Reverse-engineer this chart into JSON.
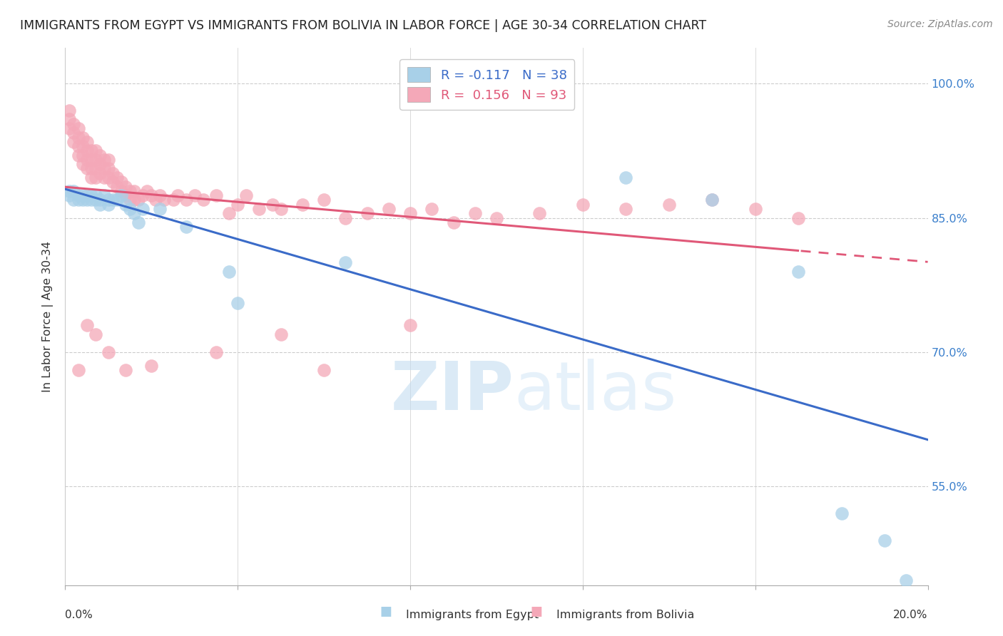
{
  "title": "IMMIGRANTS FROM EGYPT VS IMMIGRANTS FROM BOLIVIA IN LABOR FORCE | AGE 30-34 CORRELATION CHART",
  "source": "Source: ZipAtlas.com",
  "ylabel": "In Labor Force | Age 30-34",
  "ytick_values": [
    0.55,
    0.7,
    0.85,
    1.0
  ],
  "xlim": [
    0.0,
    0.2
  ],
  "ylim": [
    0.44,
    1.04
  ],
  "legend_blue_r": "-0.117",
  "legend_blue_n": "38",
  "legend_pink_r": "0.156",
  "legend_pink_n": "93",
  "blue_color": "#A8D0E8",
  "pink_color": "#F4A8B8",
  "blue_line_color": "#3A6BC8",
  "pink_line_color": "#E05878",
  "watermark_zip": "ZIP",
  "watermark_atlas": "atlas",
  "egypt_x": [
    0.001,
    0.001,
    0.002,
    0.002,
    0.003,
    0.003,
    0.004,
    0.004,
    0.005,
    0.005,
    0.006,
    0.006,
    0.007,
    0.007,
    0.008,
    0.008,
    0.009,
    0.01,
    0.01,
    0.011,
    0.012,
    0.013,
    0.014,
    0.015,
    0.016,
    0.017,
    0.018,
    0.022,
    0.028,
    0.038,
    0.04,
    0.065,
    0.13,
    0.15,
    0.17,
    0.18,
    0.19,
    0.195
  ],
  "egypt_y": [
    0.88,
    0.875,
    0.87,
    0.88,
    0.875,
    0.87,
    0.875,
    0.87,
    0.875,
    0.87,
    0.87,
    0.875,
    0.87,
    0.875,
    0.865,
    0.87,
    0.875,
    0.865,
    0.87,
    0.87,
    0.87,
    0.875,
    0.865,
    0.86,
    0.855,
    0.845,
    0.86,
    0.86,
    0.84,
    0.79,
    0.755,
    0.8,
    0.895,
    0.87,
    0.79,
    0.52,
    0.49,
    0.445
  ],
  "bolivia_x": [
    0.001,
    0.001,
    0.001,
    0.002,
    0.002,
    0.002,
    0.003,
    0.003,
    0.003,
    0.003,
    0.004,
    0.004,
    0.004,
    0.004,
    0.005,
    0.005,
    0.005,
    0.005,
    0.006,
    0.006,
    0.006,
    0.006,
    0.007,
    0.007,
    0.007,
    0.007,
    0.008,
    0.008,
    0.008,
    0.009,
    0.009,
    0.009,
    0.01,
    0.01,
    0.01,
    0.011,
    0.011,
    0.012,
    0.012,
    0.013,
    0.013,
    0.014,
    0.014,
    0.015,
    0.015,
    0.016,
    0.016,
    0.017,
    0.018,
    0.019,
    0.02,
    0.021,
    0.022,
    0.023,
    0.025,
    0.026,
    0.028,
    0.03,
    0.032,
    0.035,
    0.038,
    0.04,
    0.042,
    0.045,
    0.048,
    0.05,
    0.055,
    0.06,
    0.065,
    0.07,
    0.075,
    0.08,
    0.085,
    0.09,
    0.095,
    0.1,
    0.11,
    0.12,
    0.13,
    0.14,
    0.15,
    0.16,
    0.17,
    0.003,
    0.005,
    0.007,
    0.01,
    0.014,
    0.02,
    0.035,
    0.05,
    0.06,
    0.08
  ],
  "bolivia_y": [
    0.95,
    0.97,
    0.96,
    0.935,
    0.945,
    0.955,
    0.92,
    0.93,
    0.94,
    0.95,
    0.91,
    0.92,
    0.93,
    0.94,
    0.905,
    0.915,
    0.925,
    0.935,
    0.895,
    0.905,
    0.915,
    0.925,
    0.895,
    0.905,
    0.915,
    0.925,
    0.9,
    0.91,
    0.92,
    0.895,
    0.905,
    0.915,
    0.895,
    0.905,
    0.915,
    0.89,
    0.9,
    0.885,
    0.895,
    0.88,
    0.89,
    0.875,
    0.885,
    0.87,
    0.88,
    0.87,
    0.88,
    0.87,
    0.875,
    0.88,
    0.875,
    0.87,
    0.875,
    0.87,
    0.87,
    0.875,
    0.87,
    0.875,
    0.87,
    0.875,
    0.855,
    0.865,
    0.875,
    0.86,
    0.865,
    0.86,
    0.865,
    0.87,
    0.85,
    0.855,
    0.86,
    0.855,
    0.86,
    0.845,
    0.855,
    0.85,
    0.855,
    0.865,
    0.86,
    0.865,
    0.87,
    0.86,
    0.85,
    0.68,
    0.73,
    0.72,
    0.7,
    0.68,
    0.685,
    0.7,
    0.72,
    0.68,
    0.73
  ]
}
